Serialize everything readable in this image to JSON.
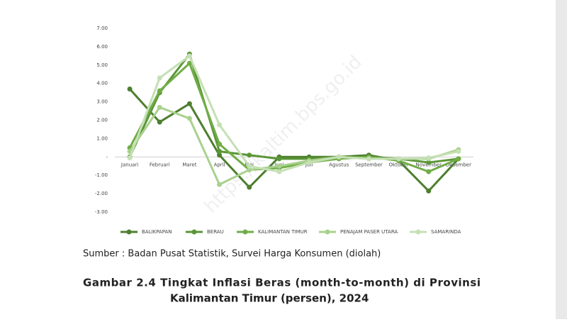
{
  "chart_data": {
    "type": "line",
    "categories": [
      "Januari",
      "Februari",
      "Maret",
      "April",
      "Mei",
      "Juni",
      "Juli",
      "Agustus",
      "September",
      "Oktober",
      "November",
      "Desember"
    ],
    "series": [
      {
        "name": "BALIKPAPAN",
        "color": "#4e7f2f",
        "values": [
          3.7,
          1.9,
          2.9,
          0.1,
          -1.65,
          0.0,
          0.0,
          0.0,
          0.1,
          -0.2,
          -1.85,
          -0.1
        ]
      },
      {
        "name": "BERAU",
        "color": "#5b9636",
        "values": [
          0.0,
          3.5,
          5.6,
          0.3,
          0.1,
          -0.1,
          -0.1,
          0.0,
          0.0,
          -0.1,
          -0.3,
          -0.1
        ]
      },
      {
        "name": "KALIMANTAN TIMUR",
        "color": "#70ad47",
        "values": [
          0.5,
          3.6,
          5.1,
          0.7,
          -0.7,
          -0.6,
          -0.3,
          -0.1,
          0.0,
          -0.2,
          -0.8,
          -0.1
        ]
      },
      {
        "name": "PENAJAM PASER UTARA",
        "color": "#a9d18e",
        "values": [
          0.3,
          2.7,
          2.1,
          -1.5,
          -0.7,
          -0.5,
          -0.2,
          0.0,
          -0.1,
          -0.1,
          -0.1,
          0.4
        ]
      },
      {
        "name": "SAMARINDA",
        "color": "#c5e0b4",
        "values": [
          -0.05,
          4.3,
          5.5,
          1.75,
          -0.5,
          -0.8,
          -0.3,
          0.0,
          -0.1,
          -0.1,
          -0.05,
          0.3
        ]
      }
    ],
    "ylim": [
      -3,
      7
    ],
    "yticks": [
      {
        "value": 7,
        "label": "7.00"
      },
      {
        "value": 6,
        "label": "6.00"
      },
      {
        "value": 5,
        "label": "5.00"
      },
      {
        "value": 4,
        "label": "4.00"
      },
      {
        "value": 3,
        "label": "3.00"
      },
      {
        "value": 2,
        "label": "2.00"
      },
      {
        "value": 1,
        "label": "1.00"
      },
      {
        "value": 0,
        "label": "-"
      },
      {
        "value": -1,
        "label": "-1.00"
      },
      {
        "value": -2,
        "label": "-2.00"
      },
      {
        "value": -3,
        "label": "-3.00"
      }
    ],
    "legend": "bottom"
  },
  "watermark": "https://kaltim.bps.go.id",
  "source": "Sumber : Badan Pusat Statistik, Survei Harga Konsumen (diolah)",
  "caption": [
    "Gambar 2.4 Tingkat Inflasi Beras (month-to-month) di Provinsi",
    "Kalimantan Timur (persen), 2024"
  ]
}
